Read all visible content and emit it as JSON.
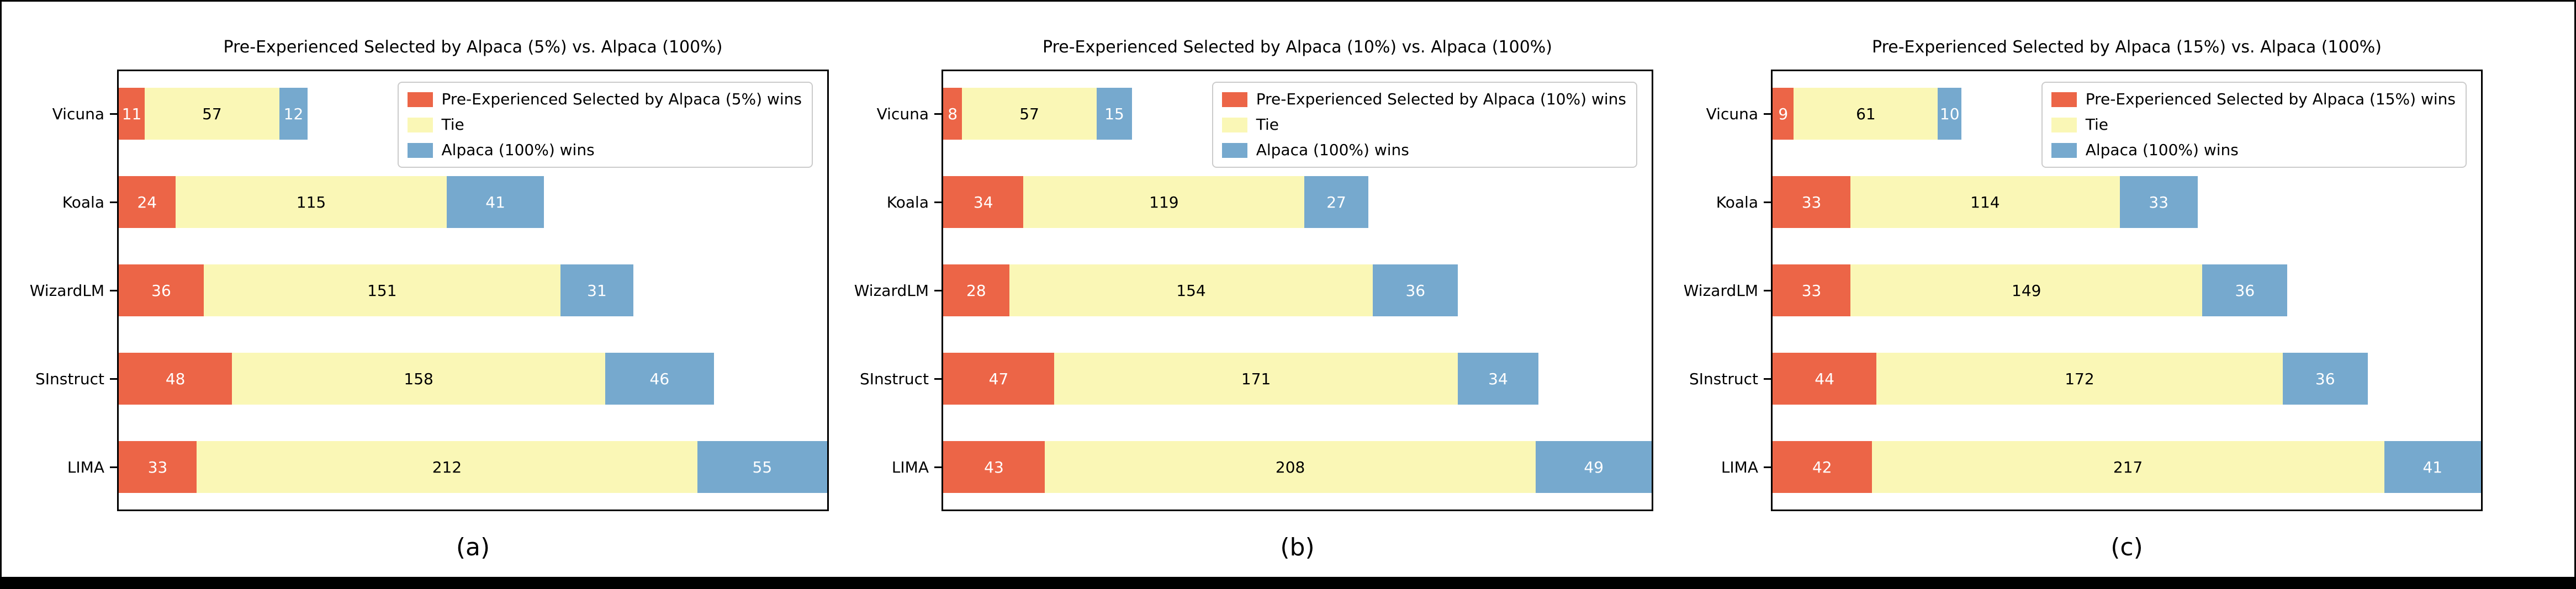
{
  "figure": {
    "background": "#000000",
    "panel_background": "#ffffff",
    "frame_color": "#000000"
  },
  "colors": {
    "win": "#EC6547",
    "tie": "#FAF7B6",
    "lose": "#76A9CE",
    "win_label_text": "#ffffff",
    "tie_label_text": "#000000",
    "lose_label_text": "#ffffff",
    "spine": "#000000",
    "legend_border": "#cbcbcb"
  },
  "chart_data": [
    {
      "type": "bar",
      "orientation": "horizontal-stacked",
      "title": "Pre-Experienced Selected by Alpaca (5%) vs. Alpaca (100%)",
      "caption": "(a)",
      "categories": [
        "Vicuna",
        "Koala",
        "WizardLM",
        "SInstruct",
        "LIMA"
      ],
      "series": [
        {
          "name": "Pre-Experienced Selected by Alpaca (5%) wins",
          "color_key": "win",
          "values": [
            11,
            24,
            36,
            48,
            33
          ]
        },
        {
          "name": "Tie",
          "color_key": "tie",
          "values": [
            57,
            115,
            151,
            158,
            212
          ]
        },
        {
          "name": "Alpaca (100%) wins",
          "color_key": "lose",
          "values": [
            12,
            41,
            31,
            46,
            55
          ]
        }
      ],
      "xlim": [
        0,
        300
      ],
      "legend_position": "upper-right",
      "grid": false
    },
    {
      "type": "bar",
      "orientation": "horizontal-stacked",
      "title": "Pre-Experienced Selected by Alpaca (10%) vs. Alpaca (100%)",
      "caption": "(b)",
      "categories": [
        "Vicuna",
        "Koala",
        "WizardLM",
        "SInstruct",
        "LIMA"
      ],
      "series": [
        {
          "name": "Pre-Experienced Selected by Alpaca (10%) wins",
          "color_key": "win",
          "values": [
            8,
            34,
            28,
            47,
            43
          ]
        },
        {
          "name": "Tie",
          "color_key": "tie",
          "values": [
            57,
            119,
            154,
            171,
            208
          ]
        },
        {
          "name": "Alpaca (100%) wins",
          "color_key": "lose",
          "values": [
            15,
            27,
            36,
            34,
            49
          ]
        }
      ],
      "xlim": [
        0,
        300
      ],
      "legend_position": "upper-right",
      "grid": false
    },
    {
      "type": "bar",
      "orientation": "horizontal-stacked",
      "title": "Pre-Experienced Selected by Alpaca (15%) vs. Alpaca (100%)",
      "caption": "(c)",
      "categories": [
        "Vicuna",
        "Koala",
        "WizardLM",
        "SInstruct",
        "LIMA"
      ],
      "series": [
        {
          "name": "Pre-Experienced Selected by Alpaca (15%) wins",
          "color_key": "win",
          "values": [
            9,
            33,
            33,
            44,
            42
          ]
        },
        {
          "name": "Tie",
          "color_key": "tie",
          "values": [
            61,
            114,
            149,
            172,
            217
          ]
        },
        {
          "name": "Alpaca (100%) wins",
          "color_key": "lose",
          "values": [
            10,
            33,
            36,
            36,
            41
          ]
        }
      ],
      "xlim": [
        0,
        300
      ],
      "legend_position": "upper-right",
      "grid": false
    }
  ]
}
